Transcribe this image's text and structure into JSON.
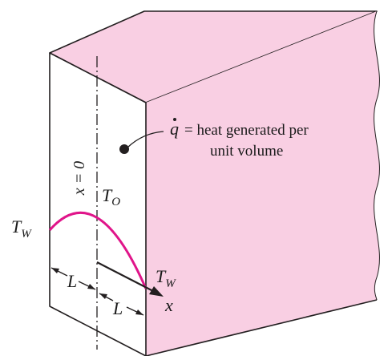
{
  "colors": {
    "slab_face": "#f9cfe3",
    "front_face": "#ffffff",
    "outline": "#231f20",
    "temperature_curve": "#e0158a",
    "text": "#1a1a1a"
  },
  "labels": {
    "centerline": "x = 0",
    "center_temperature": {
      "main": "T",
      "sub": "O"
    },
    "wall_temperature_left": {
      "main": "T",
      "sub": "W"
    },
    "wall_temperature_right": {
      "main": "T",
      "sub": "W"
    },
    "half_thickness_left": "L",
    "half_thickness_right": "L",
    "x_axis": "x",
    "heat_generation_symbol": "q",
    "heat_generation_text_line1": "= heat generated per",
    "heat_generation_text_line2": "unit volume"
  }
}
